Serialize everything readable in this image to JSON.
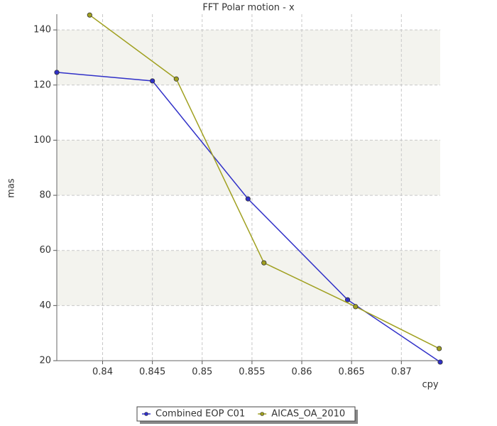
{
  "chart_data": {
    "type": "line",
    "title": "FFT Polar motion - x",
    "x_label": "cpy",
    "y_label": "mas",
    "xlim": [
      0.8354,
      0.8739
    ],
    "ylim": [
      20,
      145.7
    ],
    "xticks": [
      0.84,
      0.845,
      0.85,
      0.855,
      0.86,
      0.865,
      0.87
    ],
    "yticks": [
      20,
      40,
      60,
      80,
      100,
      120,
      140
    ],
    "grid": true,
    "legend": "bottom",
    "series": [
      {
        "name": "Combined EOP C01",
        "color": "#3030c8",
        "x": [
          0.8354,
          0.845,
          0.8546,
          0.8646,
          0.8739
        ],
        "values": [
          124.6,
          121.5,
          78.7,
          42.1,
          19.5
        ]
      },
      {
        "name": "AICAS_OA_2010",
        "color": "#a0a020",
        "x": [
          0.8387,
          0.8474,
          0.8562,
          0.8654,
          0.8738
        ],
        "values": [
          145.4,
          122.2,
          55.5,
          39.6,
          24.4
        ]
      }
    ]
  }
}
